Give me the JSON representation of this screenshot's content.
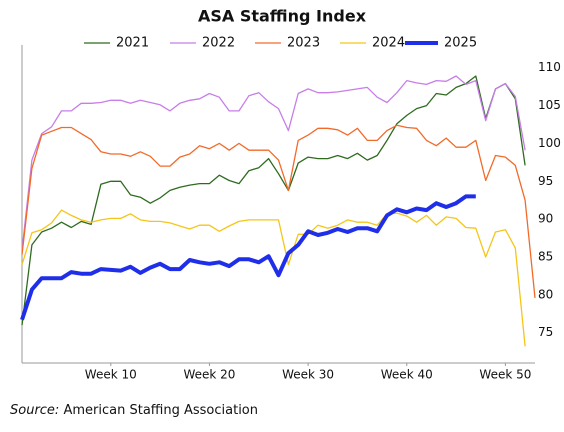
{
  "chart_data": {
    "type": "line",
    "title": "ASA Staffing Index",
    "source_label": "Source:",
    "source": "American Staffing Association",
    "x": [
      1,
      2,
      3,
      4,
      5,
      6,
      7,
      8,
      9,
      10,
      11,
      12,
      13,
      14,
      15,
      16,
      17,
      18,
      19,
      20,
      21,
      22,
      23,
      24,
      25,
      26,
      27,
      28,
      29,
      30,
      31,
      32,
      33,
      34,
      35,
      36,
      37,
      38,
      39,
      40,
      41,
      42,
      43,
      44,
      45,
      46,
      47,
      48,
      49,
      50,
      51,
      52,
      53
    ],
    "xlim": [
      1,
      53
    ],
    "xticks": [
      {
        "value": 10,
        "label": "Week 10"
      },
      {
        "value": 20,
        "label": "Week 20"
      },
      {
        "value": 30,
        "label": "Week 30"
      },
      {
        "value": 40,
        "label": "Week 40"
      },
      {
        "value": 50,
        "label": "Week 50"
      }
    ],
    "ylim": [
      71,
      113
    ],
    "yticks": [
      75,
      80,
      85,
      90,
      95,
      100,
      105,
      110
    ],
    "y_axis_side": "right",
    "legend": "top",
    "series": [
      {
        "name": "2021",
        "color": "#2e6b1f",
        "width": 1.3,
        "values": [
          76,
          86.6,
          88.3,
          88.8,
          89.6,
          88.9,
          89.7,
          89.3,
          94.6,
          95,
          95,
          93.2,
          92.9,
          92.1,
          92.8,
          93.8,
          94.2,
          94.5,
          94.7,
          94.7,
          95.8,
          95.1,
          94.7,
          96.4,
          96.8,
          98,
          96,
          93.8,
          97.4,
          98.2,
          98,
          98,
          98.4,
          98,
          98.7,
          97.8,
          98.4,
          100.4,
          102.6,
          103.7,
          104.6,
          105,
          106.6,
          106.4,
          107.4,
          107.9,
          108.9,
          103.3,
          107.2,
          107.9,
          105.9,
          97.1,
          null
        ]
      },
      {
        "name": "2022",
        "color": "#c77ee8",
        "width": 1.3,
        "values": [
          85.9,
          97.8,
          101.3,
          102.2,
          104.3,
          104.3,
          105.3,
          105.3,
          105.4,
          105.7,
          105.7,
          105.3,
          105.7,
          105.4,
          105.1,
          104.3,
          105.3,
          105.7,
          105.9,
          106.6,
          106.1,
          104.3,
          104.3,
          106.3,
          106.7,
          105.5,
          104.6,
          101.7,
          106.6,
          107.2,
          106.7,
          106.7,
          106.8,
          107,
          107.2,
          107.4,
          106.1,
          105.4,
          106.7,
          108.3,
          108,
          107.8,
          108.3,
          108.2,
          108.9,
          107.8,
          108.3,
          103,
          107.2,
          107.9,
          106.2,
          99.1,
          null
        ]
      },
      {
        "name": "2023",
        "color": "#f26a2a",
        "width": 1.3,
        "values": [
          85.3,
          96.7,
          101.1,
          101.6,
          102.1,
          102.1,
          101.3,
          100.5,
          98.9,
          98.6,
          98.6,
          98.3,
          98.9,
          98.3,
          97,
          97,
          98.2,
          98.6,
          99.7,
          99.3,
          100,
          99.1,
          100,
          99.1,
          99.1,
          99.1,
          97.8,
          93.8,
          100.4,
          101.1,
          102,
          102,
          101.8,
          101.1,
          102,
          100.4,
          100.4,
          101.7,
          102.4,
          102.1,
          102,
          100.4,
          99.7,
          100.7,
          99.5,
          99.5,
          100.4,
          95.1,
          98.4,
          98.2,
          97.1,
          92.5,
          79.6
        ]
      },
      {
        "name": "2024",
        "color": "#f5c518",
        "width": 1.3,
        "values": [
          84,
          88.2,
          88.6,
          89.5,
          91.2,
          90.5,
          89.9,
          89.6,
          89.9,
          90.1,
          90.1,
          90.7,
          89.9,
          89.7,
          89.7,
          89.5,
          89.1,
          88.7,
          89.2,
          89.2,
          88.4,
          89.1,
          89.7,
          89.9,
          89.9,
          89.9,
          89.9,
          84,
          88,
          88,
          89.2,
          88.8,
          89.2,
          89.9,
          89.6,
          89.6,
          89.2,
          90.7,
          90.8,
          90.4,
          89.6,
          90.5,
          89.2,
          90.3,
          90.1,
          88.9,
          88.8,
          85,
          88.3,
          88.6,
          86.2,
          73.2,
          null
        ]
      },
      {
        "name": "2025",
        "color": "#1f2ee8",
        "width": 4,
        "values": [
          76.7,
          80.7,
          82.2,
          82.2,
          82.2,
          83,
          82.8,
          82.8,
          83.4,
          83.3,
          83.2,
          83.7,
          82.9,
          83.6,
          84.1,
          83.4,
          83.4,
          84.6,
          84.3,
          84.1,
          84.3,
          83.8,
          84.7,
          84.7,
          84.3,
          85.1,
          82.6,
          85.5,
          86.6,
          88.4,
          87.9,
          88.2,
          88.7,
          88.3,
          88.8,
          88.8,
          88.4,
          90.5,
          91.3,
          90.9,
          91.4,
          91.2,
          92.1,
          91.6,
          92.1,
          93,
          93,
          null,
          null,
          null,
          null,
          null,
          null
        ]
      }
    ]
  }
}
